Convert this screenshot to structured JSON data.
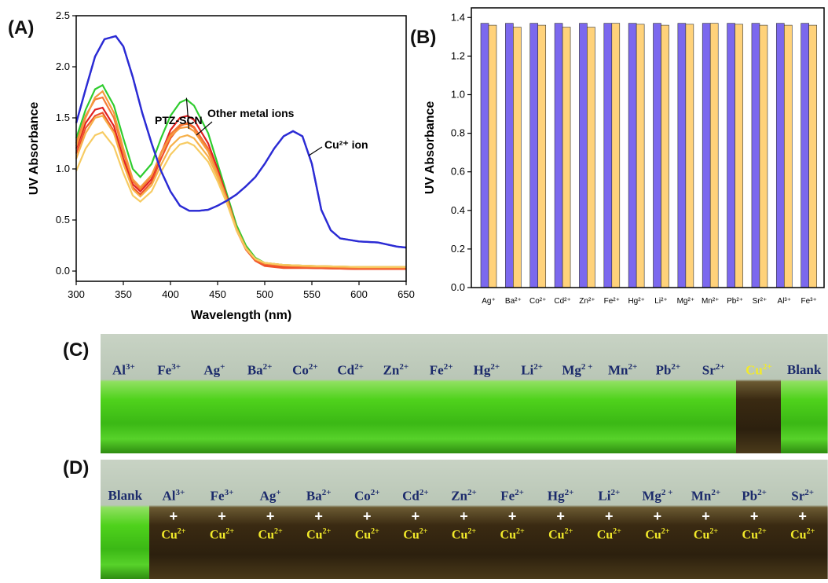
{
  "panels": {
    "a": "(A)",
    "b": "(B)",
    "c": "(C)",
    "d": "(D)"
  },
  "chart_data": [
    {
      "type": "line",
      "panel": "(A)",
      "xlabel": "Wavelength (nm)",
      "ylabel": "UV Absorbance",
      "xlim": [
        300,
        650
      ],
      "ylim": [
        -0.1,
        2.5
      ],
      "xticks": [
        300,
        350,
        400,
        450,
        500,
        550,
        600,
        650
      ],
      "yticks": [
        0.0,
        0.5,
        1.0,
        1.5,
        2.0,
        2.5
      ],
      "annotations": [
        {
          "text": "PTZ-SCN",
          "x": 417,
          "y": 1.68
        },
        {
          "text": "Other metal ions",
          "x": 430,
          "y": 1.45
        },
        {
          "text": "Cu²⁺ ion",
          "x": 545,
          "y": 1.25
        }
      ],
      "series": [
        {
          "name": "Cu²⁺ ion",
          "color": "#2b2bd4",
          "x": [
            300,
            310,
            320,
            330,
            342,
            350,
            360,
            370,
            380,
            390,
            400,
            410,
            420,
            430,
            440,
            450,
            460,
            470,
            480,
            490,
            500,
            510,
            520,
            530,
            540,
            550,
            560,
            570,
            580,
            600,
            620,
            640,
            650
          ],
          "y": [
            1.45,
            1.78,
            2.1,
            2.27,
            2.3,
            2.2,
            1.9,
            1.55,
            1.25,
            0.98,
            0.78,
            0.64,
            0.59,
            0.59,
            0.6,
            0.64,
            0.69,
            0.75,
            0.83,
            0.92,
            1.05,
            1.2,
            1.32,
            1.37,
            1.32,
            1.05,
            0.6,
            0.4,
            0.32,
            0.29,
            0.28,
            0.24,
            0.23
          ]
        },
        {
          "name": "PTZ-SCN",
          "color": "#2ecc2e",
          "x": [
            300,
            310,
            320,
            328,
            340,
            350,
            360,
            368,
            380,
            390,
            400,
            410,
            417,
            425,
            440,
            450,
            460,
            470,
            480,
            490,
            500,
            520,
            550,
            600,
            650
          ],
          "y": [
            1.3,
            1.58,
            1.78,
            1.82,
            1.62,
            1.3,
            1.0,
            0.92,
            1.05,
            1.3,
            1.52,
            1.65,
            1.68,
            1.62,
            1.35,
            1.05,
            0.75,
            0.45,
            0.25,
            0.13,
            0.08,
            0.06,
            0.05,
            0.04,
            0.04
          ]
        },
        {
          "name": "",
          "color": "#e02020",
          "x": [
            300,
            310,
            320,
            328,
            340,
            350,
            360,
            368,
            380,
            390,
            400,
            410,
            418,
            425,
            440,
            450,
            460,
            470,
            480,
            490,
            500,
            520,
            550,
            600,
            650
          ],
          "y": [
            1.2,
            1.45,
            1.58,
            1.6,
            1.42,
            1.1,
            0.85,
            0.78,
            0.9,
            1.15,
            1.38,
            1.5,
            1.52,
            1.48,
            1.25,
            1.0,
            0.72,
            0.42,
            0.22,
            0.11,
            0.06,
            0.04,
            0.03,
            0.02,
            0.02
          ]
        },
        {
          "name": "",
          "color": "#f0522a",
          "x": [
            300,
            310,
            320,
            328,
            340,
            350,
            360,
            368,
            380,
            390,
            400,
            410,
            418,
            425,
            440,
            450,
            460,
            470,
            480,
            490,
            500,
            520,
            550,
            600,
            650
          ],
          "y": [
            1.15,
            1.4,
            1.52,
            1.55,
            1.37,
            1.06,
            0.82,
            0.75,
            0.87,
            1.1,
            1.3,
            1.42,
            1.45,
            1.41,
            1.2,
            0.96,
            0.7,
            0.4,
            0.21,
            0.1,
            0.05,
            0.03,
            0.03,
            0.02,
            0.02
          ]
        },
        {
          "name": "",
          "color": "#f57a35",
          "x": [
            300,
            310,
            320,
            328,
            340,
            350,
            360,
            368,
            380,
            390,
            400,
            410,
            418,
            425,
            440,
            450,
            460,
            470,
            480,
            490,
            500,
            520,
            550,
            600,
            650
          ],
          "y": [
            1.25,
            1.52,
            1.68,
            1.7,
            1.5,
            1.16,
            0.88,
            0.8,
            0.93,
            1.16,
            1.34,
            1.43,
            1.44,
            1.4,
            1.19,
            0.96,
            0.7,
            0.41,
            0.22,
            0.11,
            0.07,
            0.05,
            0.04,
            0.03,
            0.03
          ]
        },
        {
          "name": "",
          "color": "#f59a3e",
          "x": [
            300,
            310,
            320,
            328,
            340,
            350,
            360,
            368,
            380,
            390,
            400,
            410,
            418,
            425,
            440,
            450,
            460,
            470,
            480,
            490,
            500,
            520,
            550,
            600,
            650
          ],
          "y": [
            1.22,
            1.5,
            1.7,
            1.76,
            1.55,
            1.2,
            0.9,
            0.82,
            0.94,
            1.15,
            1.32,
            1.4,
            1.41,
            1.37,
            1.17,
            0.95,
            0.7,
            0.42,
            0.23,
            0.12,
            0.08,
            0.06,
            0.05,
            0.04,
            0.04
          ]
        },
        {
          "name": "",
          "color": "#f6b04a",
          "x": [
            300,
            310,
            320,
            328,
            340,
            350,
            360,
            368,
            380,
            390,
            400,
            410,
            418,
            425,
            440,
            450,
            460,
            470,
            480,
            490,
            500,
            520,
            550,
            600,
            650
          ],
          "y": [
            1.1,
            1.35,
            1.5,
            1.52,
            1.35,
            1.05,
            0.8,
            0.73,
            0.84,
            1.04,
            1.22,
            1.31,
            1.33,
            1.3,
            1.12,
            0.92,
            0.68,
            0.41,
            0.22,
            0.12,
            0.08,
            0.06,
            0.05,
            0.04,
            0.04
          ]
        },
        {
          "name": "",
          "color": "#f7cb62",
          "x": [
            300,
            310,
            320,
            328,
            340,
            350,
            360,
            368,
            380,
            390,
            400,
            410,
            418,
            425,
            440,
            450,
            460,
            470,
            480,
            490,
            500,
            520,
            550,
            600,
            650
          ],
          "y": [
            0.98,
            1.2,
            1.33,
            1.36,
            1.22,
            0.96,
            0.74,
            0.68,
            0.78,
            0.97,
            1.14,
            1.24,
            1.26,
            1.23,
            1.07,
            0.88,
            0.66,
            0.4,
            0.22,
            0.12,
            0.08,
            0.06,
            0.05,
            0.04,
            0.04
          ]
        }
      ]
    },
    {
      "type": "bar",
      "panel": "(B)",
      "ylabel": "UV Absorbance",
      "xlabel": "",
      "ylim": [
        0.0,
        1.45
      ],
      "yticks": [
        0.0,
        0.2,
        0.4,
        0.6,
        0.8,
        1.0,
        1.2,
        1.4
      ],
      "categories": [
        "Ag⁺",
        "Ba²⁺",
        "Co²⁺",
        "Cd²⁺",
        "Zn²⁺",
        "Fe²⁺",
        "Hg²⁺",
        "Li²⁺",
        "Mg²⁺",
        "Mn²⁺",
        "Pb²⁺",
        "Sr²⁺",
        "Al³⁺",
        "Fe³⁺"
      ],
      "series": [
        {
          "name": "",
          "color": "#7b68ee",
          "values": [
            1.37,
            1.37,
            1.37,
            1.37,
            1.37,
            1.37,
            1.37,
            1.37,
            1.37,
            1.37,
            1.37,
            1.37,
            1.37,
            1.37
          ]
        },
        {
          "name": "",
          "color": "#ffd27a",
          "values": [
            1.36,
            1.35,
            1.36,
            1.35,
            1.35,
            1.37,
            1.365,
            1.36,
            1.365,
            1.37,
            1.365,
            1.36,
            1.36,
            1.36
          ]
        }
      ]
    }
  ],
  "photo_c": {
    "vials": [
      {
        "ion": "Al",
        "charge": "3+"
      },
      {
        "ion": "Fe",
        "charge": "3+"
      },
      {
        "ion": "Ag",
        "charge": "+"
      },
      {
        "ion": "Ba",
        "charge": "2+"
      },
      {
        "ion": "Co",
        "charge": "2+"
      },
      {
        "ion": "Cd",
        "charge": "2+"
      },
      {
        "ion": "Zn",
        "charge": "2+"
      },
      {
        "ion": "Fe",
        "charge": "2+"
      },
      {
        "ion": "Hg",
        "charge": "2+"
      },
      {
        "ion": "Li",
        "charge": "2+"
      },
      {
        "ion": "Mg",
        "charge": "2 +"
      },
      {
        "ion": "Mn",
        "charge": "2+"
      },
      {
        "ion": "Pb",
        "charge": "2+"
      },
      {
        "ion": "Sr",
        "charge": "2+"
      },
      {
        "ion": "Cu",
        "charge": "2+"
      },
      {
        "ion": "Blank",
        "charge": ""
      }
    ],
    "colors": {
      "green": "#3fd21a",
      "dark": "#3a2a12",
      "cu_label": "#f2ea2a",
      "label": "#1b2a6b"
    }
  },
  "photo_d": {
    "vials": [
      {
        "ion": "Blank",
        "charge": ""
      },
      {
        "ion": "Al",
        "charge": "3+"
      },
      {
        "ion": "Fe",
        "charge": "3+"
      },
      {
        "ion": "Ag",
        "charge": "+"
      },
      {
        "ion": "Ba",
        "charge": "2+"
      },
      {
        "ion": "Co",
        "charge": "2+"
      },
      {
        "ion": "Cd",
        "charge": "2+"
      },
      {
        "ion": "Zn",
        "charge": "2+"
      },
      {
        "ion": "Fe",
        "charge": "2+"
      },
      {
        "ion": "Hg",
        "charge": "2+"
      },
      {
        "ion": "Li",
        "charge": "2+"
      },
      {
        "ion": "Mg",
        "charge": "2 +"
      },
      {
        "ion": "Mn",
        "charge": "2+"
      },
      {
        "ion": "Pb",
        "charge": "2+"
      },
      {
        "ion": "Sr",
        "charge": "2+"
      }
    ],
    "plus": "+",
    "added": {
      "ion": "Cu",
      "charge": "2+"
    }
  }
}
